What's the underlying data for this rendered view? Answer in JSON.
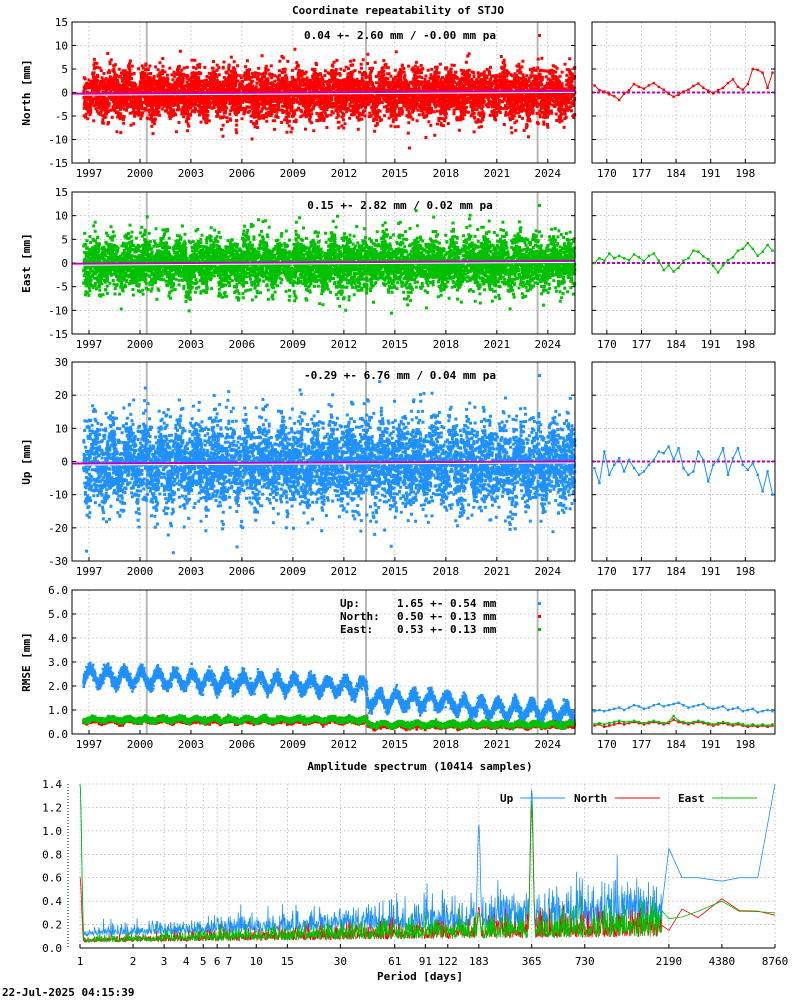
{
  "title": "Coordinate repeatability of STJO",
  "timestamp": "22-Jul-2025 04:15:39",
  "colors": {
    "north": "#ff0000",
    "east": "#00c000",
    "up": "#1e90ff",
    "trend": "#c000c0",
    "gap": "#b8b8b8"
  },
  "time_x": {
    "ticks": [
      "1997",
      "2000",
      "2003",
      "2006",
      "2009",
      "2012",
      "2015",
      "2018",
      "2021",
      "2024"
    ],
    "range": [
      1996.0,
      2025.6
    ]
  },
  "recent_x": {
    "ticks": [
      "170",
      "177",
      "184",
      "191",
      "198"
    ],
    "range": [
      167,
      204
    ]
  },
  "equipment_changes": [
    2000.4,
    2013.3,
    2023.4
  ],
  "chart_data": [
    {
      "type": "scatter",
      "ylabel": "North [mm]",
      "ylim": [
        -15,
        15
      ],
      "yticks": [
        "15",
        "10",
        "5",
        "0",
        "-5",
        "-10",
        "-15"
      ],
      "annotation": "0.04 +- 2.60 mm / -0.00 mm pa",
      "series_key": "north",
      "stats": {
        "mean": 0.04,
        "std": 2.6,
        "rate": -0.0
      },
      "recent_y": [
        1.5,
        0.5,
        0.2,
        -0.4,
        -0.8,
        -1.6,
        -0.3,
        0.5,
        1.8,
        1.2,
        0.8,
        1.5,
        2.0,
        1.2,
        0.6,
        -0.3,
        -0.9,
        -0.5,
        0.2,
        0.6,
        1.4,
        1.9,
        1.0,
        0.4,
        -0.2,
        0.5,
        1.0,
        2.0,
        2.8,
        1.2,
        0.6,
        1.8,
        5.0,
        4.8,
        4.2,
        1.0,
        4.2
      ]
    },
    {
      "type": "scatter",
      "ylabel": "East [mm]",
      "ylim": [
        -15,
        15
      ],
      "yticks": [
        "15",
        "10",
        "5",
        "0",
        "-5",
        "-10",
        "-15"
      ],
      "annotation": "0.15 +- 2.82 mm /  0.02 mm pa",
      "series_key": "east",
      "stats": {
        "mean": 0.15,
        "std": 2.82,
        "rate": 0.02
      },
      "recent_y": [
        0.0,
        1.0,
        0.5,
        2.0,
        1.0,
        1.5,
        1.0,
        0.6,
        1.8,
        1.2,
        0.4,
        1.5,
        2.0,
        0.5,
        -1.5,
        -0.5,
        -1.8,
        -1.0,
        0.5,
        1.0,
        2.6,
        2.4,
        1.4,
        0.8,
        -0.6,
        -2.0,
        -0.5,
        0.6,
        1.2,
        2.6,
        3.0,
        4.2,
        3.0,
        1.5,
        2.4,
        3.8,
        2.6
      ]
    },
    {
      "type": "scatter",
      "ylabel": "Up [mm]",
      "ylim": [
        -30,
        30
      ],
      "yticks": [
        "30",
        "20",
        "10",
        "0",
        "-10",
        "-20",
        "-30"
      ],
      "annotation": "-0.29 +- 6.76 mm /  0.04 mm pa",
      "series_key": "up",
      "stats": {
        "mean": -0.29,
        "std": 6.76,
        "rate": 0.04
      },
      "recent_y": [
        -2.0,
        -6.5,
        3.0,
        -4.0,
        -1.0,
        1.0,
        -3.0,
        0.5,
        -2.0,
        -4.0,
        -3.0,
        -1.0,
        0.5,
        3.0,
        2.5,
        4.5,
        0.5,
        4.0,
        -2.0,
        -4.0,
        -3.0,
        3.0,
        0.5,
        -6.0,
        -1.0,
        0.5,
        4.0,
        -4.0,
        1.0,
        4.0,
        -1.0,
        -2.5,
        -0.5,
        -4.0,
        -9.0,
        -3.0,
        -10.0
      ]
    },
    {
      "type": "scatter",
      "ylabel": "RMSE [mm]",
      "ylim": [
        0,
        6
      ],
      "yticks": [
        "6.0",
        "5.0",
        "4.0",
        "3.0",
        "2.0",
        "1.0",
        "0.0"
      ],
      "legend": [
        {
          "label": "Up:",
          "value": "1.65 +- 0.54 mm",
          "key": "up"
        },
        {
          "label": "North:",
          "value": "0.50 +- 0.13 mm",
          "key": "north"
        },
        {
          "label": "East:",
          "value": "0.53 +- 0.13 mm",
          "key": "east"
        }
      ],
      "recent_up": [
        0.95,
        1.0,
        0.95,
        1.0,
        1.05,
        1.1,
        1.0,
        1.1,
        1.2,
        1.15,
        1.05,
        1.1,
        1.2,
        1.25,
        1.15,
        1.2,
        1.25,
        1.3,
        1.2,
        1.1,
        1.15,
        1.2,
        1.25,
        1.1,
        1.05,
        1.1,
        1.15,
        1.0,
        1.05,
        1.1,
        0.95,
        1.0,
        1.05,
        0.9,
        0.95,
        1.0,
        0.95
      ],
      "recent_north": [
        0.35,
        0.4,
        0.3,
        0.35,
        0.4,
        0.45,
        0.4,
        0.45,
        0.5,
        0.45,
        0.4,
        0.45,
        0.5,
        0.45,
        0.4,
        0.45,
        0.6,
        0.5,
        0.45,
        0.4,
        0.45,
        0.5,
        0.45,
        0.4,
        0.35,
        0.4,
        0.45,
        0.4,
        0.35,
        0.4,
        0.35,
        0.3,
        0.35,
        0.3,
        0.35,
        0.3,
        0.35
      ],
      "recent_east": [
        0.4,
        0.45,
        0.4,
        0.45,
        0.5,
        0.55,
        0.5,
        0.5,
        0.55,
        0.5,
        0.45,
        0.5,
        0.55,
        0.5,
        0.45,
        0.5,
        0.75,
        0.55,
        0.5,
        0.45,
        0.5,
        0.55,
        0.5,
        0.45,
        0.4,
        0.45,
        0.5,
        0.45,
        0.4,
        0.45,
        0.4,
        0.35,
        0.4,
        0.35,
        0.4,
        0.35,
        0.4
      ]
    },
    {
      "type": "line",
      "title": "Amplitude spectrum (10414 samples)",
      "xlabel": "Period [days]",
      "xscale": "log",
      "ylim": [
        0,
        1.4
      ],
      "yticks": [
        "1.4",
        "1.2",
        "1.0",
        "0.8",
        "0.6",
        "0.4",
        "0.2",
        "0.0"
      ],
      "xticks": [
        "1",
        "2",
        "3",
        "4",
        "5",
        "6",
        "7",
        "10",
        "15",
        "30",
        "61",
        "91",
        "122",
        "183",
        "365",
        "730",
        "2190",
        "4380",
        "8760"
      ],
      "legend": [
        "Up",
        "North",
        "East"
      ],
      "peaks": [
        {
          "period": 1,
          "up": 1.4,
          "east": 1.4,
          "north": 0.6
        },
        {
          "period": 183,
          "up": 1.05,
          "east": 0.3,
          "north": 0.35
        },
        {
          "period": 365,
          "up": 1.35,
          "east": 1.25,
          "north": 1.2
        },
        {
          "period": 2190,
          "up": 0.85,
          "east": 0.25,
          "north": 0.15
        },
        {
          "period": 4380,
          "up": 0.57,
          "east": 0.4,
          "north": 0.42
        },
        {
          "period": 8760,
          "up": 1.4,
          "east": 0.3,
          "north": 0.28
        }
      ]
    }
  ]
}
